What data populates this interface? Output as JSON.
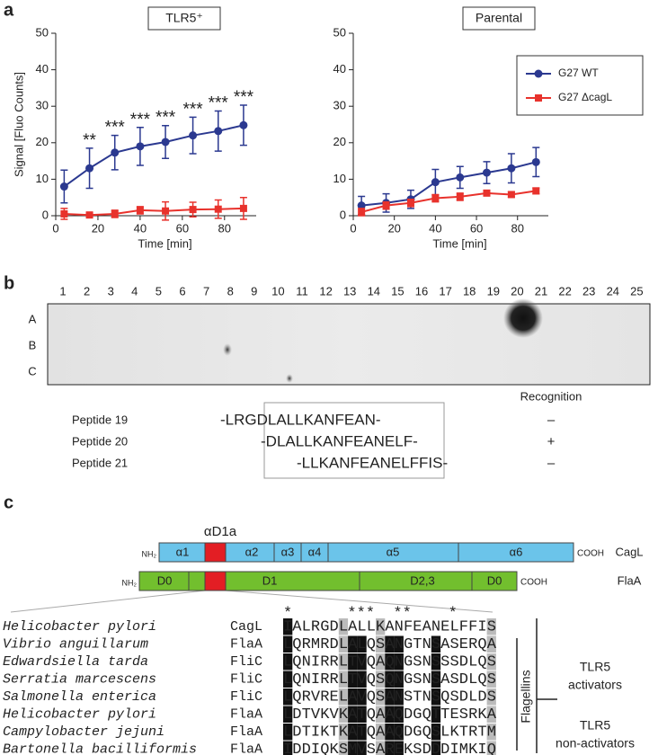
{
  "panel_labels": [
    "a",
    "b",
    "c"
  ],
  "chart_data": [
    {
      "type": "line",
      "title": "TLR5⁺",
      "xlabel": "Time [min]",
      "ylabel": "Signal [Fluo Counts]",
      "x": [
        4,
        16,
        28,
        40,
        52,
        65,
        77,
        89
      ],
      "series": [
        {
          "color": "#2b3990",
          "values": [
            8,
            13,
            17.3,
            19,
            20.2,
            22,
            23.2,
            24.8
          ],
          "errors": [
            4.5,
            5.5,
            4.7,
            5.2,
            4.5,
            5,
            5.5,
            5.5
          ]
        },
        {
          "color": "#e8322c",
          "values": [
            0.5,
            0.2,
            0.5,
            1.5,
            1.3,
            1.7,
            1.8,
            2
          ],
          "errors": [
            1.5,
            0.5,
            1,
            1,
            2.5,
            2,
            2.5,
            3
          ]
        }
      ],
      "annotations": [
        {
          "x": 16,
          "text": "**"
        },
        {
          "x": 28,
          "text": "***"
        },
        {
          "x": 40,
          "text": "***"
        },
        {
          "x": 52,
          "text": "***"
        },
        {
          "x": 65,
          "text": "***"
        },
        {
          "x": 77,
          "text": "***"
        },
        {
          "x": 89,
          "text": "***"
        }
      ],
      "xlim": [
        0,
        95
      ],
      "xticks": [
        0,
        20,
        40,
        60,
        80
      ],
      "ylim": [
        0,
        50
      ],
      "yticks": [
        0,
        10,
        20,
        30,
        40,
        50
      ]
    },
    {
      "type": "line",
      "title": "Parental",
      "xlabel": "Time [min]",
      "x": [
        4,
        16,
        28,
        40,
        52,
        65,
        77,
        89
      ],
      "series": [
        {
          "name": "G27 WT",
          "color": "#2b3990",
          "values": [
            2.8,
            3.5,
            4.5,
            9.2,
            10.5,
            11.8,
            13,
            14.7
          ],
          "errors": [
            2.5,
            2.5,
            2.5,
            3.5,
            3,
            3,
            4,
            4
          ]
        },
        {
          "name": "G27 ΔcagL",
          "color": "#e8322c",
          "values": [
            1,
            2.8,
            3.5,
            4.8,
            5.2,
            6.2,
            5.8,
            6.8
          ],
          "errors": [
            1,
            1,
            1,
            1,
            1,
            0.7,
            0.7,
            0.8
          ]
        }
      ],
      "legend": "upper right",
      "xlim": [
        0,
        95
      ],
      "xticks": [
        0,
        20,
        40,
        60,
        80
      ],
      "ylim": [
        0,
        50
      ],
      "yticks": [
        0,
        10,
        20,
        30,
        40,
        50
      ]
    }
  ],
  "blot": {
    "columns": [
      "1",
      "2",
      "3",
      "4",
      "5",
      "6",
      "7",
      "8",
      "9",
      "10",
      "11",
      "12",
      "13",
      "14",
      "15",
      "16",
      "17",
      "18",
      "19",
      "20",
      "21",
      "22",
      "23",
      "24",
      "25"
    ],
    "rows": [
      "A",
      "B",
      "C"
    ],
    "highlight_color": "#e8322c",
    "recognition_header": "Recognition",
    "peptides": [
      {
        "name": "Peptide 19",
        "sequence": "-LRGDLALLKANFEAN-",
        "recognition": "–"
      },
      {
        "name": "Peptide 20",
        "sequence": "-DLALLKANFEANELF-",
        "recognition": "+"
      },
      {
        "name": "Peptide 21",
        "sequence": "-LLKANFEANELFFIS-",
        "recognition": "–"
      }
    ]
  },
  "domains": {
    "region_label": "αD1a",
    "name_color": "#5bb8e0",
    "cagl": {
      "nterm": "NH₂",
      "segments": [
        "α1",
        "α2",
        "α3",
        "α4",
        "α5",
        "α6"
      ],
      "cterm": "COOH",
      "name": "CagL"
    },
    "flaa": {
      "nterm": "NH₂",
      "segments": [
        "D0",
        "D1",
        "D2,3",
        "D0"
      ],
      "cterm": "COOH",
      "name": "FlaA"
    }
  },
  "alignment": {
    "conservation": "*      ***  **    *",
    "rows": [
      {
        "organism": "Helicobacter pylori",
        "protein": "CagL",
        "sequence": "IALRGDLALLKANFEANELFFIS"
      },
      {
        "organism": "Vibrio anguillarum",
        "protein": "FlaA",
        "sequence": "LQRMRDLALQSANGTNSASERQA"
      },
      {
        "organism": "Edwardsiella tarda",
        "protein": "FliC",
        "sequence": "LQNIRRLTVQAQNGSNSSSDLQS"
      },
      {
        "organism": "Serratia marcescens",
        "protein": "FliC",
        "sequence": "LQNIRRLTVQSQNGSNSASDLQS"
      },
      {
        "organism": "Salmonella enterica",
        "protein": "FliC",
        "sequence": "LQRVRELAVQSANSTNSQSDLDS"
      },
      {
        "organism": "Helicobacter pylori",
        "protein": "FlaA",
        "sequence": "LDTVKVKATQAAQDGQTTESRKA"
      },
      {
        "organism": "Campylobacter jejuni",
        "protein": "FlaA",
        "sequence": "LDTIKTKATQAAQDGQSLKTRTM"
      },
      {
        "organism": "Bartonella bacilliformis",
        "protein": "FlaA",
        "sequence": "IDDIQKSMVSAREKSDDDIMKIQ"
      }
    ],
    "flagellins": "Flagellins",
    "activators": [
      "TLR5",
      "activators"
    ],
    "non_activators": [
      "TLR5",
      "non-activators"
    ]
  }
}
